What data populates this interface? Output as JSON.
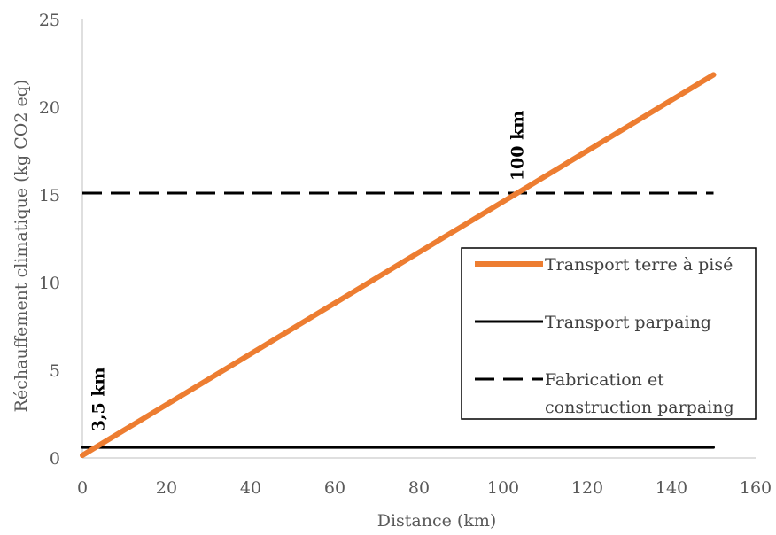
{
  "chart_data": {
    "type": "line",
    "title": "",
    "xlabel": "Distance (km)",
    "ylabel": "Réchauffement climatique (kg CO2 eq)",
    "xlim": [
      0,
      160
    ],
    "ylim": [
      0,
      25
    ],
    "xticks": [
      0,
      20,
      40,
      60,
      80,
      100,
      120,
      140,
      160
    ],
    "yticks": [
      0,
      5,
      10,
      15,
      20,
      25
    ],
    "grid": false,
    "legend_position": "right",
    "series": [
      {
        "name": "Transport terre à pisé",
        "x": [
          0,
          150
        ],
        "y": [
          0.15,
          21.85
        ],
        "color": "#ED7D31",
        "style": "solid"
      },
      {
        "name": "Transport parpaing",
        "x": [
          0,
          150
        ],
        "y": [
          0.6,
          0.6
        ],
        "color": "#000000",
        "style": "solid"
      },
      {
        "name": "Fabrication et construction parpaing",
        "name_lines": [
          "Fabrication et",
          "construction parpaing"
        ],
        "x": [
          0,
          150
        ],
        "y": [
          15.1,
          15.1
        ],
        "color": "#000000",
        "style": "dashed"
      }
    ],
    "annotations": [
      {
        "text": "3,5 km",
        "x": 3.5
      },
      {
        "text": "100 km",
        "x": 103
      }
    ]
  }
}
